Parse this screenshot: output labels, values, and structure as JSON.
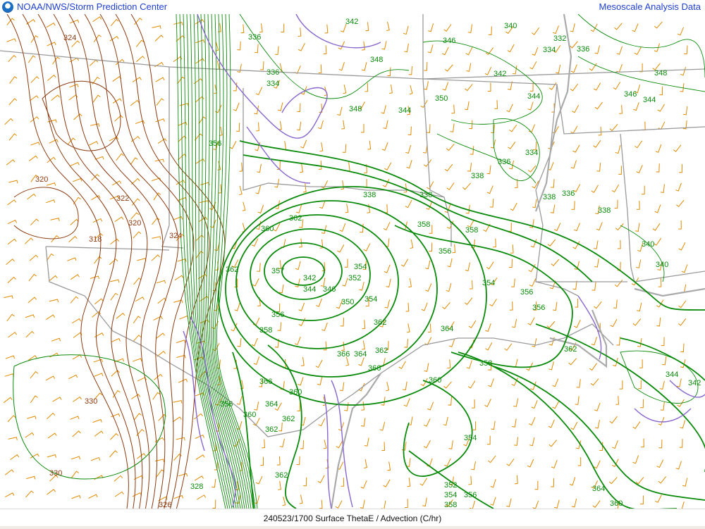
{
  "header": {
    "left_title": "NOAA/NWS/Storm Prediction Center",
    "right_title": "Mesoscale Analysis Data",
    "logo": "noaa-logo"
  },
  "footer": {
    "caption": "240523/1700 Surface ThetaE / Advection (C/hr)"
  },
  "colors": {
    "thetae_cold": "#8b3a0f",
    "thetae_warm": "#0a8a0a",
    "advection": "#8866cc",
    "borders": "#999999",
    "wind_barbs": "#e08a00",
    "header_text": "#1f3fcf"
  },
  "map": {
    "contour_labels": [
      "324",
      "320",
      "322",
      "320",
      "318",
      "324",
      "330",
      "330",
      "328",
      "326",
      "336",
      "336",
      "334",
      "342",
      "348",
      "344",
      "348",
      "346",
      "350",
      "340",
      "332",
      "334",
      "336",
      "342",
      "344",
      "348",
      "346",
      "344",
      "336",
      "334",
      "338",
      "336",
      "338",
      "338",
      "338",
      "340",
      "338",
      "340",
      "356",
      "362",
      "360",
      "362",
      "357",
      "342",
      "344",
      "346",
      "350",
      "352",
      "354",
      "354",
      "356",
      "358",
      "358",
      "358",
      "356",
      "354",
      "356",
      "356",
      "362",
      "364",
      "366",
      "364",
      "362",
      "366",
      "360",
      "366",
      "364",
      "360",
      "362",
      "362",
      "358",
      "360",
      "356",
      "362",
      "362",
      "364",
      "360",
      "352",
      "354",
      "356",
      "358",
      "354",
      "344",
      "342"
    ]
  }
}
